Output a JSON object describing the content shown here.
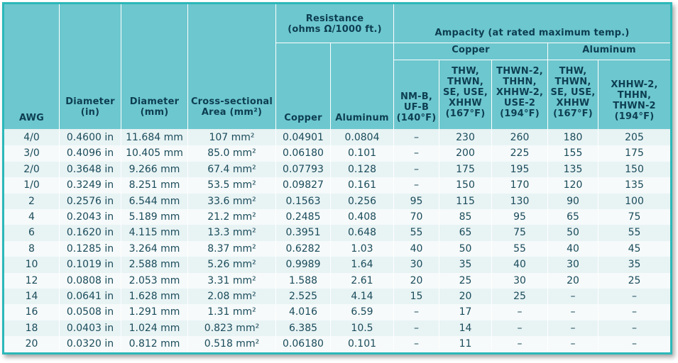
{
  "headers": {
    "awg": "AWG",
    "diameter_in": [
      "Diameter",
      "(in)"
    ],
    "diameter_mm": [
      "Diameter",
      "(mm)"
    ],
    "area": [
      "Cross-sectional",
      "Area (mm²)"
    ],
    "resistance": [
      "Resistance",
      "(ohms Ω/1000 ft.)"
    ],
    "res_copper": "Copper",
    "res_aluminum": "Aluminum",
    "ampacity": "Ampacity (at rated maximum temp.)",
    "amp_copper_group": "Copper",
    "amp_aluminum_group": "Aluminum",
    "cu_140": [
      "NM-B,",
      "UF-B",
      "(140°F)"
    ],
    "cu_167": [
      "THW,",
      "THWN,",
      "SE, USE,",
      "XHHW",
      "(167°F)"
    ],
    "cu_194": [
      "THWN-2,",
      "THHN,",
      "XHHW-2,",
      "USE-2",
      "(194°F)"
    ],
    "al_167": [
      "THW,",
      "THWN,",
      "SE, USE,",
      "XHHW",
      "(167°F)"
    ],
    "al_194": [
      "XHHW-2,",
      "THHN,",
      "THWN-2",
      "(194°F)"
    ]
  },
  "rows": [
    [
      "4/0",
      "0.4600 in",
      "11.684 mm",
      "107 mm²",
      "0.04901",
      "0.0804",
      "–",
      "230",
      "260",
      "180",
      "205"
    ],
    [
      "3/0",
      "0.4096 in",
      "10.405 mm",
      "85.0 mm²",
      "0.06180",
      "0.101",
      "–",
      "200",
      "225",
      "155",
      "175"
    ],
    [
      "2/0",
      "0.3648 in",
      "9.266 mm",
      "67.4 mm²",
      "0.07793",
      "0.128",
      "–",
      "175",
      "195",
      "135",
      "150"
    ],
    [
      "1/0",
      "0.3249 in",
      "8.251 mm",
      "53.5 mm²",
      "0.09827",
      "0.161",
      "–",
      "150",
      "170",
      "120",
      "135"
    ],
    [
      "2",
      "0.2576 in",
      "6.544 mm",
      "33.6 mm²",
      "0.1563",
      "0.256",
      "95",
      "115",
      "130",
      "90",
      "100"
    ],
    [
      "4",
      "0.2043 in",
      "5.189 mm",
      "21.2 mm²",
      "0.2485",
      "0.408",
      "70",
      "85",
      "95",
      "65",
      "75"
    ],
    [
      "6",
      "0.1620 in",
      "4.115 mm",
      "13.3 mm²",
      "0.3951",
      "0.648",
      "55",
      "65",
      "75",
      "50",
      "55"
    ],
    [
      "8",
      "0.1285 in",
      "3.264 mm",
      "8.37 mm²",
      "0.6282",
      "1.03",
      "40",
      "50",
      "55",
      "40",
      "45"
    ],
    [
      "10",
      "0.1019 in",
      "2.588 mm",
      "5.26 mm²",
      "0.9989",
      "1.64",
      "30",
      "35",
      "40",
      "30",
      "35"
    ],
    [
      "12",
      "0.0808 in",
      "2.053 mm",
      "3.31 mm²",
      "1.588",
      "2.61",
      "20",
      "25",
      "30",
      "20",
      "25"
    ],
    [
      "14",
      "0.0641 in",
      "1.628 mm",
      "2.08 mm²",
      "2.525",
      "4.14",
      "15",
      "20",
      "25",
      "–",
      "–"
    ],
    [
      "16",
      "0.0508 in",
      "1.291 mm",
      "1.31 mm²",
      "4.016",
      "6.59",
      "–",
      "17",
      "–",
      "–",
      "–"
    ],
    [
      "18",
      "0.0403 in",
      "1.024 mm",
      "0.823 mm²",
      "6.385",
      "10.5",
      "–",
      "14",
      "–",
      "–",
      "–"
    ],
    [
      "20",
      "0.0320 in",
      "0.812 mm",
      "0.518 mm²",
      "0.06180",
      "0.101",
      "–",
      "11",
      "–",
      "–",
      "–"
    ]
  ]
}
